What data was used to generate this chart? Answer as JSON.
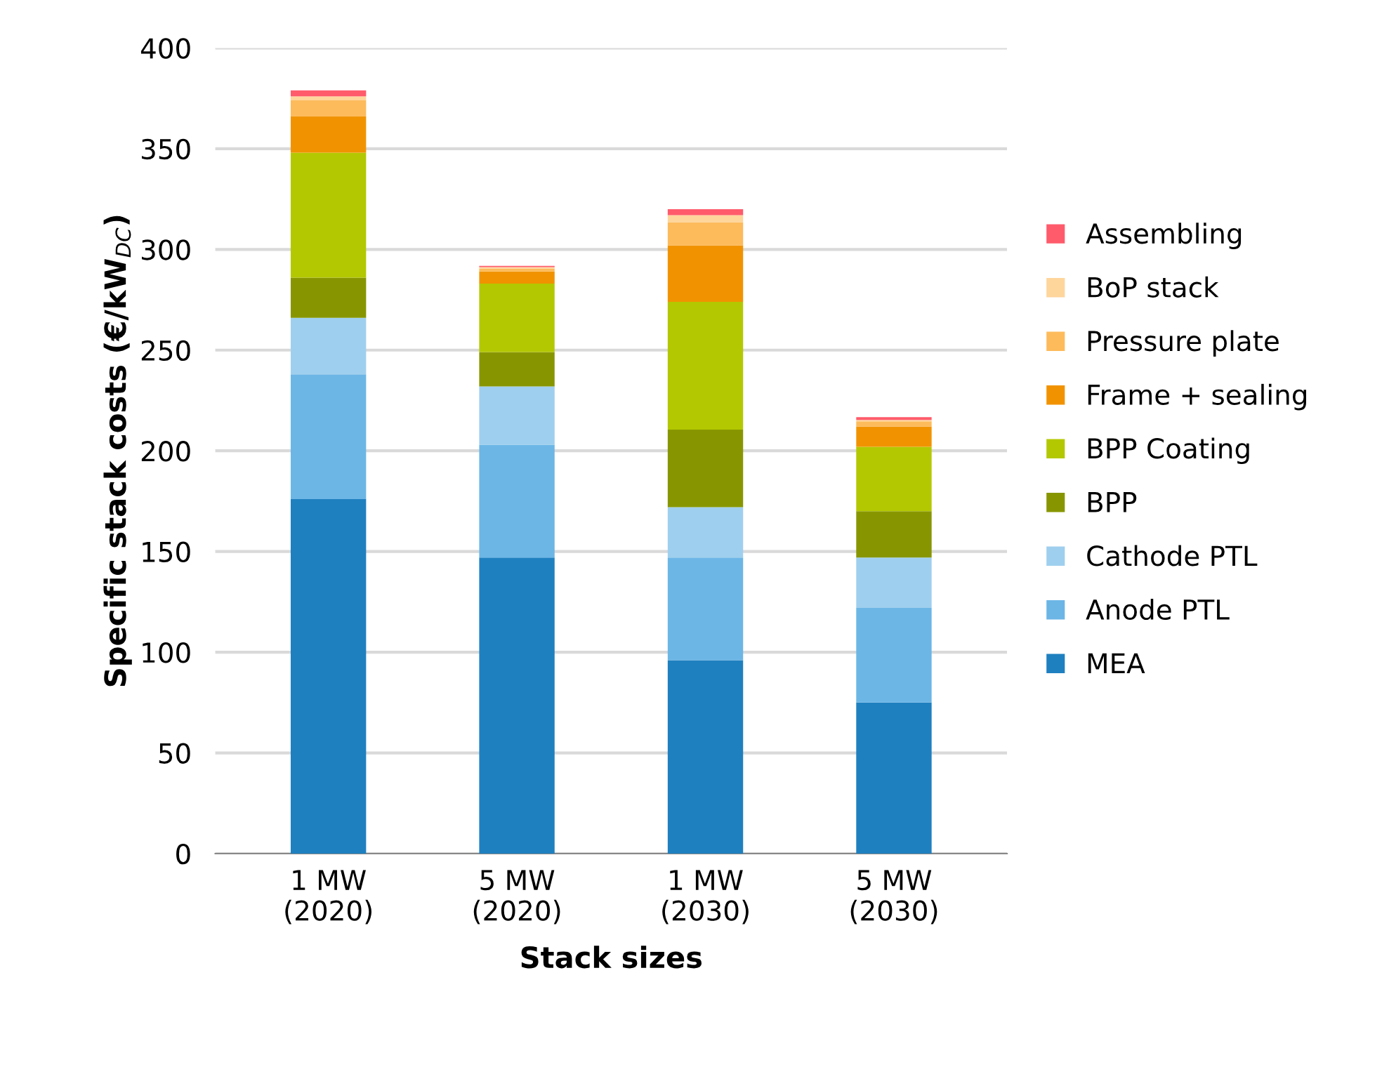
{
  "chart_data": {
    "type": "bar",
    "stacked": true,
    "categories": [
      "1 MW\n(2020)",
      "5 MW\n(2020)",
      "1 MW\n(2030)",
      "5 MW\n(2030)"
    ],
    "xlabel": "Stack sizes",
    "ylabel": "Specific stack costs (€/kW$_{DC}$)",
    "ylim": [
      0,
      400
    ],
    "yticks": [
      0,
      50,
      100,
      150,
      200,
      250,
      300,
      350,
      400
    ],
    "grid": "y",
    "legend": "right",
    "series": [
      {
        "name": "MEA",
        "color": "#1f80c0",
        "values": [
          176,
          147,
          96,
          75
        ]
      },
      {
        "name": "Anode PTL",
        "color": "#6cb6e6",
        "values": [
          62,
          56,
          51,
          47
        ]
      },
      {
        "name": "Cathode PTL",
        "color": "#9fcfee",
        "values": [
          28,
          29,
          25,
          25
        ]
      },
      {
        "name": "BPP",
        "color": "#879600",
        "values": [
          20,
          17,
          38.5,
          23
        ]
      },
      {
        "name": "BPP Coating",
        "color": "#b3c800",
        "values": [
          62,
          34,
          63.5,
          32
        ]
      },
      {
        "name": "Frame + sealing",
        "color": "#f19300",
        "values": [
          18,
          6,
          28,
          10
        ]
      },
      {
        "name": "Pressure plate",
        "color": "#fdbb5b",
        "values": [
          8,
          1.5,
          11.5,
          2.6
        ]
      },
      {
        "name": "BoP stack",
        "color": "#fed59b",
        "values": [
          2,
          0.7,
          3.5,
          0.7
        ]
      },
      {
        "name": "Assembling",
        "color": "#ff5b6b",
        "values": [
          3,
          0.6,
          3,
          1.4
        ]
      }
    ]
  }
}
